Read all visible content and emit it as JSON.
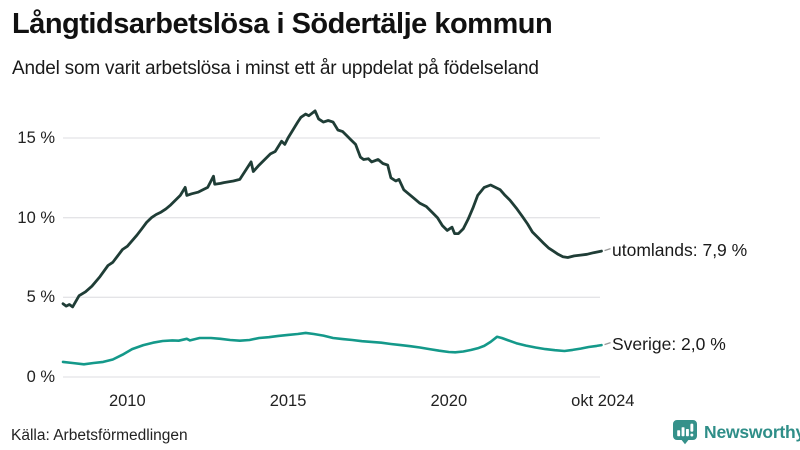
{
  "header": {
    "title": "Långtidsarbetslösa i Södertälje kommun",
    "subtitle": "Andel som varit arbetslösa i minst ett år uppdelat på födelseland"
  },
  "footer": {
    "source": "Källa: Arbetsförmedlingen",
    "brand": "Newsworthy"
  },
  "colors": {
    "utomlands_line": "#1f3d36",
    "sverige_line": "#14998a",
    "grid": "#e4e4e7",
    "axis_text": "#222222",
    "legend_text": "#1a1a1a",
    "dash": "#9a9a9a",
    "brand_teal": "#35918a",
    "brand_text": "#2f8e88"
  },
  "chart_data": {
    "type": "line",
    "title": "Långtidsarbetslösa i Södertälje kommun",
    "subtitle": "Andel som varit arbetslösa i minst ett år uppdelat på födelseland",
    "grid": true,
    "legend_position": "right-of-line-end",
    "x_axis": {
      "range": [
        2008.0,
        2024.83
      ],
      "ticks": [
        {
          "label": "2010",
          "year": 2010.0
        },
        {
          "label": "2015",
          "year": 2015.0
        },
        {
          "label": "2020",
          "year": 2020.0
        },
        {
          "label": "okt 2024",
          "year": 2024.79
        }
      ]
    },
    "y_axis": {
      "unit": "%",
      "range": [
        0,
        17.3
      ],
      "ticks": [
        {
          "label": "0 %",
          "value": 0
        },
        {
          "label": "5 %",
          "value": 5
        },
        {
          "label": "10 %",
          "value": 10
        },
        {
          "label": "15 %",
          "value": 15
        }
      ]
    },
    "series": [
      {
        "name": "utomlands",
        "legend": "utomlands: 7,9 %",
        "last_value_label": "7,9 %",
        "color_key": "utomlands_line",
        "points": [
          [
            2008.0,
            4.6
          ],
          [
            2008.1,
            4.45
          ],
          [
            2008.2,
            4.55
          ],
          [
            2008.3,
            4.4
          ],
          [
            2008.5,
            5.1
          ],
          [
            2008.7,
            5.35
          ],
          [
            2008.9,
            5.7
          ],
          [
            2009.15,
            6.3
          ],
          [
            2009.4,
            7.0
          ],
          [
            2009.55,
            7.2
          ],
          [
            2009.7,
            7.6
          ],
          [
            2009.85,
            8.0
          ],
          [
            2010.0,
            8.2
          ],
          [
            2010.3,
            8.9
          ],
          [
            2010.45,
            9.3
          ],
          [
            2010.6,
            9.7
          ],
          [
            2010.75,
            10.0
          ],
          [
            2010.9,
            10.2
          ],
          [
            2011.05,
            10.35
          ],
          [
            2011.2,
            10.55
          ],
          [
            2011.35,
            10.8
          ],
          [
            2011.5,
            11.1
          ],
          [
            2011.65,
            11.4
          ],
          [
            2011.8,
            11.9
          ],
          [
            2011.85,
            11.4
          ],
          [
            2012.0,
            11.5
          ],
          [
            2012.2,
            11.6
          ],
          [
            2012.35,
            11.75
          ],
          [
            2012.5,
            11.9
          ],
          [
            2012.68,
            12.6
          ],
          [
            2012.72,
            12.1
          ],
          [
            2012.9,
            12.15
          ],
          [
            2013.0,
            12.2
          ],
          [
            2013.3,
            12.3
          ],
          [
            2013.5,
            12.4
          ],
          [
            2013.85,
            13.5
          ],
          [
            2013.92,
            12.9
          ],
          [
            2014.1,
            13.3
          ],
          [
            2014.3,
            13.7
          ],
          [
            2014.45,
            14.0
          ],
          [
            2014.6,
            14.15
          ],
          [
            2014.8,
            14.8
          ],
          [
            2014.9,
            14.6
          ],
          [
            2015.0,
            15.0
          ],
          [
            2015.15,
            15.5
          ],
          [
            2015.3,
            16.0
          ],
          [
            2015.4,
            16.3
          ],
          [
            2015.55,
            16.5
          ],
          [
            2015.65,
            16.4
          ],
          [
            2015.84,
            16.7
          ],
          [
            2015.95,
            16.2
          ],
          [
            2016.1,
            16.0
          ],
          [
            2016.25,
            16.1
          ],
          [
            2016.4,
            16.0
          ],
          [
            2016.55,
            15.5
          ],
          [
            2016.7,
            15.4
          ],
          [
            2016.85,
            15.1
          ],
          [
            2016.95,
            14.9
          ],
          [
            2017.1,
            14.6
          ],
          [
            2017.25,
            13.8
          ],
          [
            2017.35,
            13.65
          ],
          [
            2017.5,
            13.7
          ],
          [
            2017.6,
            13.5
          ],
          [
            2017.8,
            13.65
          ],
          [
            2017.95,
            13.4
          ],
          [
            2018.1,
            13.3
          ],
          [
            2018.2,
            12.5
          ],
          [
            2018.35,
            12.3
          ],
          [
            2018.45,
            12.4
          ],
          [
            2018.6,
            11.75
          ],
          [
            2018.75,
            11.5
          ],
          [
            2018.9,
            11.25
          ],
          [
            2019.1,
            10.9
          ],
          [
            2019.3,
            10.7
          ],
          [
            2019.5,
            10.3
          ],
          [
            2019.65,
            10.0
          ],
          [
            2019.8,
            9.5
          ],
          [
            2019.95,
            9.2
          ],
          [
            2020.1,
            9.4
          ],
          [
            2020.18,
            9.0
          ],
          [
            2020.3,
            9.0
          ],
          [
            2020.45,
            9.3
          ],
          [
            2020.6,
            9.9
          ],
          [
            2020.75,
            10.6
          ],
          [
            2020.9,
            11.4
          ],
          [
            2021.1,
            11.9
          ],
          [
            2021.3,
            12.05
          ],
          [
            2021.45,
            11.9
          ],
          [
            2021.6,
            11.75
          ],
          [
            2021.75,
            11.4
          ],
          [
            2021.9,
            11.1
          ],
          [
            2022.1,
            10.6
          ],
          [
            2022.3,
            10.05
          ],
          [
            2022.45,
            9.6
          ],
          [
            2022.6,
            9.1
          ],
          [
            2022.8,
            8.7
          ],
          [
            2022.95,
            8.4
          ],
          [
            2023.1,
            8.1
          ],
          [
            2023.25,
            7.9
          ],
          [
            2023.4,
            7.7
          ],
          [
            2023.55,
            7.55
          ],
          [
            2023.7,
            7.5
          ],
          [
            2023.9,
            7.6
          ],
          [
            2024.1,
            7.65
          ],
          [
            2024.3,
            7.7
          ],
          [
            2024.5,
            7.8
          ],
          [
            2024.75,
            7.9
          ]
        ]
      },
      {
        "name": "Sverige",
        "legend": "Sverige: 2,0 %",
        "last_value_label": "2,0 %",
        "color_key": "sverige_line",
        "points": [
          [
            2008.0,
            0.95
          ],
          [
            2008.3,
            0.88
          ],
          [
            2008.65,
            0.8
          ],
          [
            2008.95,
            0.88
          ],
          [
            2009.25,
            0.95
          ],
          [
            2009.55,
            1.1
          ],
          [
            2009.85,
            1.4
          ],
          [
            2010.15,
            1.75
          ],
          [
            2010.5,
            2.0
          ],
          [
            2010.8,
            2.15
          ],
          [
            2011.1,
            2.26
          ],
          [
            2011.4,
            2.3
          ],
          [
            2011.6,
            2.28
          ],
          [
            2011.85,
            2.4
          ],
          [
            2011.95,
            2.3
          ],
          [
            2012.25,
            2.45
          ],
          [
            2012.6,
            2.45
          ],
          [
            2012.9,
            2.4
          ],
          [
            2013.2,
            2.32
          ],
          [
            2013.5,
            2.28
          ],
          [
            2013.8,
            2.32
          ],
          [
            2014.1,
            2.45
          ],
          [
            2014.4,
            2.5
          ],
          [
            2014.7,
            2.58
          ],
          [
            2015.0,
            2.64
          ],
          [
            2015.3,
            2.7
          ],
          [
            2015.55,
            2.77
          ],
          [
            2015.8,
            2.7
          ],
          [
            2016.1,
            2.6
          ],
          [
            2016.4,
            2.45
          ],
          [
            2016.7,
            2.38
          ],
          [
            2017.0,
            2.32
          ],
          [
            2017.3,
            2.25
          ],
          [
            2017.6,
            2.2
          ],
          [
            2017.9,
            2.15
          ],
          [
            2018.2,
            2.07
          ],
          [
            2018.5,
            2.0
          ],
          [
            2018.8,
            1.93
          ],
          [
            2019.1,
            1.85
          ],
          [
            2019.4,
            1.75
          ],
          [
            2019.7,
            1.65
          ],
          [
            2020.0,
            1.57
          ],
          [
            2020.2,
            1.55
          ],
          [
            2020.45,
            1.6
          ],
          [
            2020.7,
            1.7
          ],
          [
            2020.9,
            1.8
          ],
          [
            2021.1,
            1.95
          ],
          [
            2021.3,
            2.2
          ],
          [
            2021.5,
            2.52
          ],
          [
            2021.65,
            2.45
          ],
          [
            2021.85,
            2.3
          ],
          [
            2022.1,
            2.12
          ],
          [
            2022.4,
            1.97
          ],
          [
            2022.7,
            1.85
          ],
          [
            2023.0,
            1.75
          ],
          [
            2023.3,
            1.68
          ],
          [
            2023.6,
            1.63
          ],
          [
            2023.85,
            1.7
          ],
          [
            2024.1,
            1.78
          ],
          [
            2024.35,
            1.88
          ],
          [
            2024.6,
            1.95
          ],
          [
            2024.75,
            2.0
          ]
        ]
      }
    ]
  }
}
